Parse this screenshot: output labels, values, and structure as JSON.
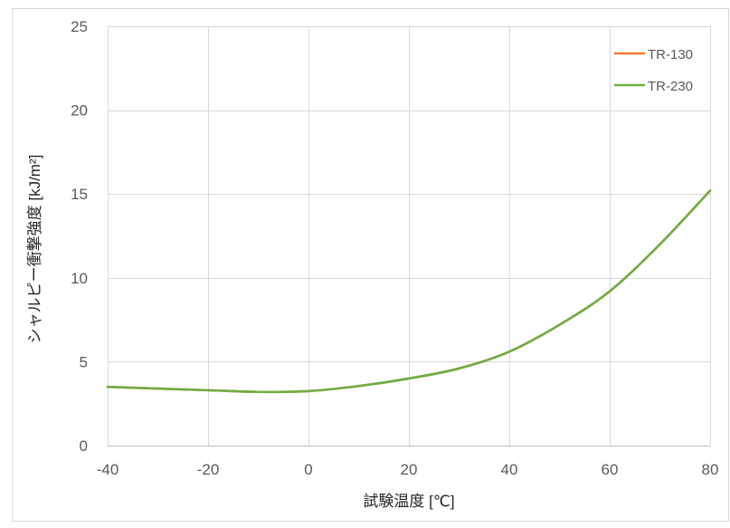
{
  "chart_data": {
    "type": "line",
    "title": "",
    "xlabel": "試験温度 [℃]",
    "ylabel": "シャルピー衝撃強度 [kJ/m²]",
    "xlim": [
      -40,
      80
    ],
    "ylim": [
      0,
      25
    ],
    "x_ticks": [
      -40,
      -20,
      0,
      20,
      40,
      60,
      80
    ],
    "y_ticks": [
      0,
      5,
      10,
      15,
      20,
      25
    ],
    "grid": true,
    "legend_position": "top-right",
    "series": [
      {
        "name": "TR-130",
        "color": "#ED7D31",
        "x": [
          -40,
          -20,
          -10,
          0,
          10,
          20,
          30,
          40,
          50,
          60,
          70,
          80
        ],
        "y": [
          3.5,
          3.3,
          3.2,
          3.25,
          3.55,
          4.0,
          4.6,
          5.6,
          7.2,
          9.2,
          12.0,
          15.2
        ]
      },
      {
        "name": "TR-230",
        "color": "#70AD47",
        "x": [
          -40,
          -20,
          -10,
          0,
          10,
          20,
          30,
          40,
          50,
          60,
          70,
          80
        ],
        "y": [
          3.5,
          3.3,
          3.2,
          3.25,
          3.55,
          4.0,
          4.6,
          5.6,
          7.2,
          9.2,
          12.0,
          15.2
        ]
      }
    ]
  }
}
